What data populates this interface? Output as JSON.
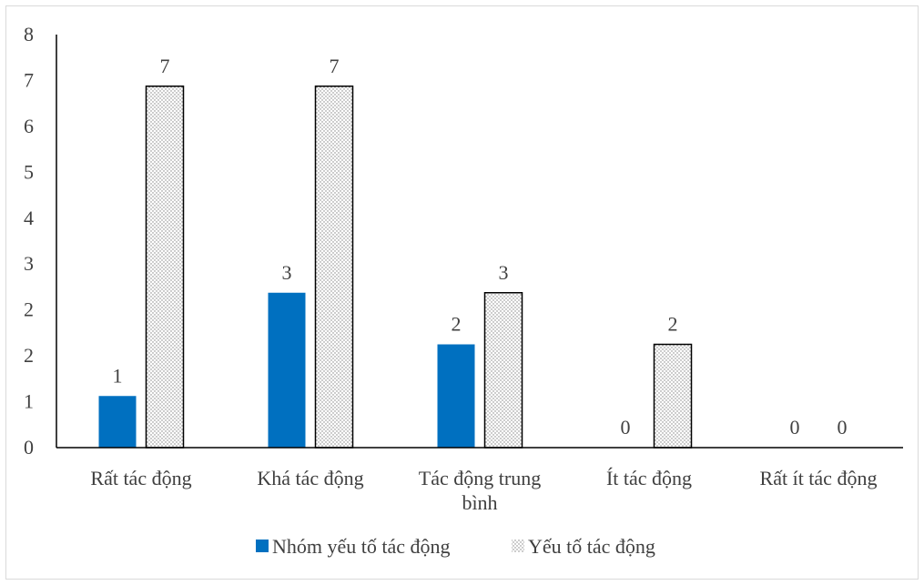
{
  "chart_data": {
    "type": "bar",
    "categories": [
      "Rất tác động",
      "Khá tác động",
      "Tác động trung bình",
      "Ít tác động",
      "Rất ít tác động"
    ],
    "category_lines": [
      [
        "Rất tác động"
      ],
      [
        "Khá tác động"
      ],
      [
        "Tác động trung",
        "bình"
      ],
      [
        "Ít tác động"
      ],
      [
        "Rất ít tác động"
      ]
    ],
    "series": [
      {
        "name": "Nhóm yếu tố tác động",
        "values": [
          1,
          3,
          2,
          0,
          0
        ],
        "color": "#0070c0",
        "pattern": "solid"
      },
      {
        "name": "Yếu tố tác động",
        "values": [
          7,
          7,
          3,
          2,
          0
        ],
        "color": "#000000",
        "pattern": "dotted"
      }
    ],
    "ylim": [
      0,
      8
    ],
    "ytick_labels": [
      "0",
      "1",
      "2",
      "2",
      "3",
      "4",
      "5",
      "6",
      "7",
      "8"
    ],
    "title": "",
    "xlabel": "",
    "ylabel": "",
    "grid": false,
    "legend_position": "bottom",
    "data_labels": true
  }
}
